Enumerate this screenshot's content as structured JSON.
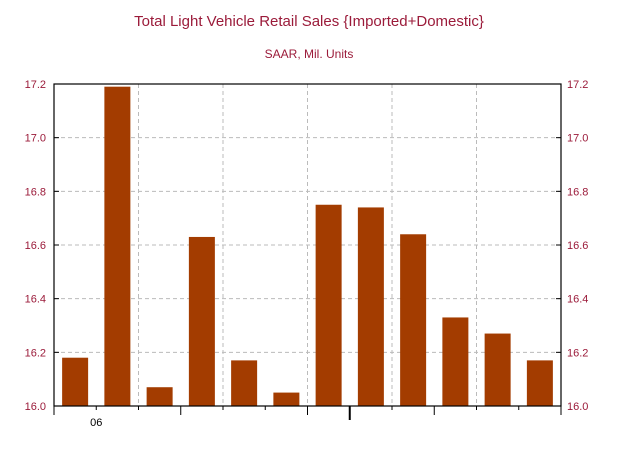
{
  "title": "Total Light Vehicle Retail Sales {Imported+Domestic}",
  "subtitle": "SAAR, Mil. Units",
  "colors": {
    "bar": "#a33c00",
    "text": "#9b1b3a",
    "grid": "#bbbbbb",
    "axis": "#000000"
  },
  "chart_data": {
    "type": "bar",
    "title": "Total Light Vehicle Retail Sales {Imported+Domestic}",
    "subtitle": "SAAR, Mil. Units",
    "values": [
      16.18,
      17.19,
      16.07,
      16.63,
      16.17,
      16.05,
      16.75,
      16.74,
      16.64,
      16.33,
      16.27,
      16.17
    ],
    "x_tick_labels": [
      "06"
    ],
    "ylim": [
      16.0,
      17.2
    ],
    "yticks": [
      "16.0",
      "16.2",
      "16.4",
      "16.6",
      "16.8",
      "17.0",
      "17.2"
    ],
    "y_axis_sides": "both",
    "grid": true,
    "legend": "none"
  }
}
